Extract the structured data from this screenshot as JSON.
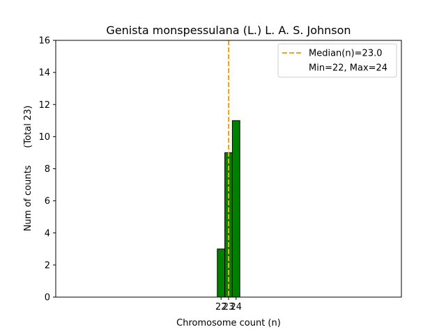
{
  "chart_data": {
    "type": "bar",
    "title": "Genista monspessulana (L.) L. A. S. Johnson",
    "xlabel": "Chromosome count (n)",
    "ylabel": "Num of counts      (Total 23)",
    "categories": [
      22,
      23,
      24
    ],
    "values": [
      3,
      9,
      11
    ],
    "xlim": [
      0,
      46
    ],
    "ylim": [
      0,
      16
    ],
    "yticks": [
      0,
      2,
      4,
      6,
      8,
      10,
      12,
      14,
      16
    ],
    "xticks": [
      22,
      23,
      24
    ],
    "bar_color": "#008000",
    "median": 23.0,
    "median_color": "#ffa500",
    "legend_placement": "top-right",
    "legend": [
      {
        "label": "Median(n)=23.0",
        "style": "dashed-line",
        "color": "#ffa500"
      },
      {
        "label": "Min=22, Max=24",
        "style": "none"
      }
    ],
    "grid": false
  }
}
